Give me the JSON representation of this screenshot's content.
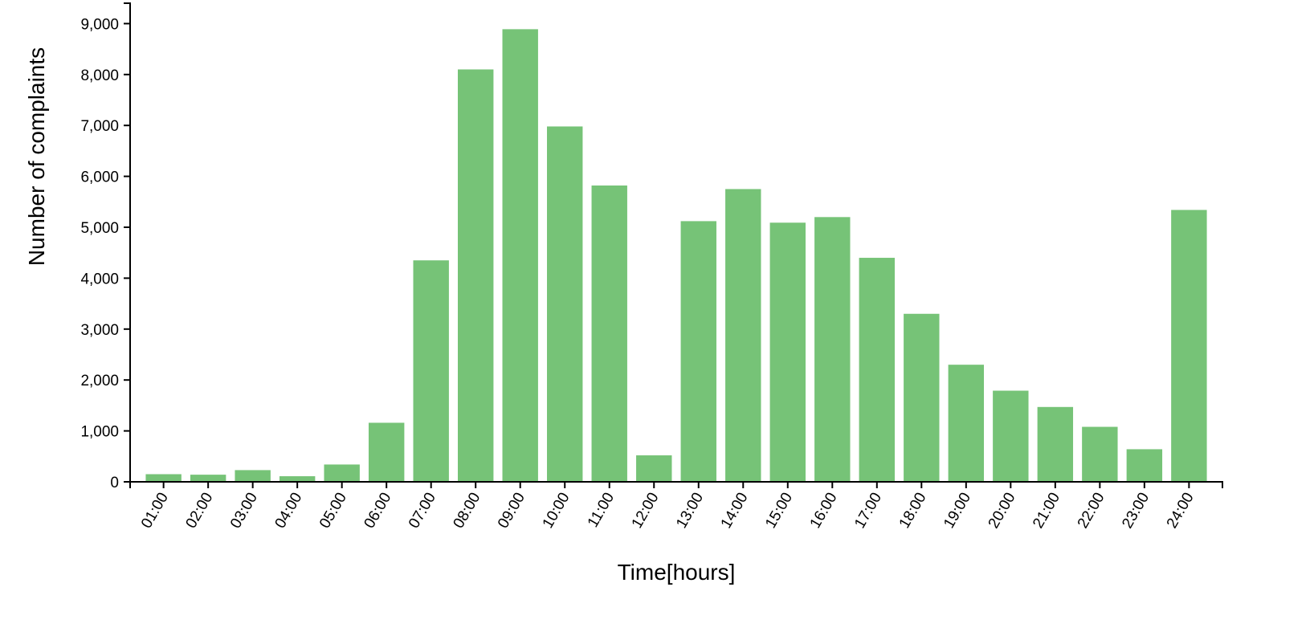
{
  "chart_data": {
    "type": "bar",
    "categories": [
      "01:00",
      "02:00",
      "03:00",
      "04:00",
      "05:00",
      "06:00",
      "07:00",
      "08:00",
      "09:00",
      "10:00",
      "11:00",
      "12:00",
      "13:00",
      "14:00",
      "15:00",
      "16:00",
      "17:00",
      "18:00",
      "19:00",
      "20:00",
      "21:00",
      "22:00",
      "23:00",
      "24:00"
    ],
    "values": [
      150,
      140,
      230,
      110,
      340,
      1160,
      4350,
      8100,
      8890,
      6980,
      5820,
      520,
      5120,
      5750,
      5090,
      5200,
      4400,
      3300,
      2300,
      1790,
      1470,
      1080,
      640,
      5340
    ],
    "title": "",
    "xlabel": "Time[hours]",
    "ylabel": "Number of complaints",
    "ylim": [
      0,
      9400
    ],
    "yticks": [
      0,
      1000,
      2000,
      3000,
      4000,
      5000,
      6000,
      7000,
      8000,
      9000
    ],
    "ytick_labels": [
      "0",
      "1,000",
      "2,000",
      "3,000",
      "4,000",
      "5,000",
      "6,000",
      "7,000",
      "8,000",
      "9,000"
    ],
    "bar_color": "#76c377",
    "grid": false,
    "legend": "none"
  }
}
